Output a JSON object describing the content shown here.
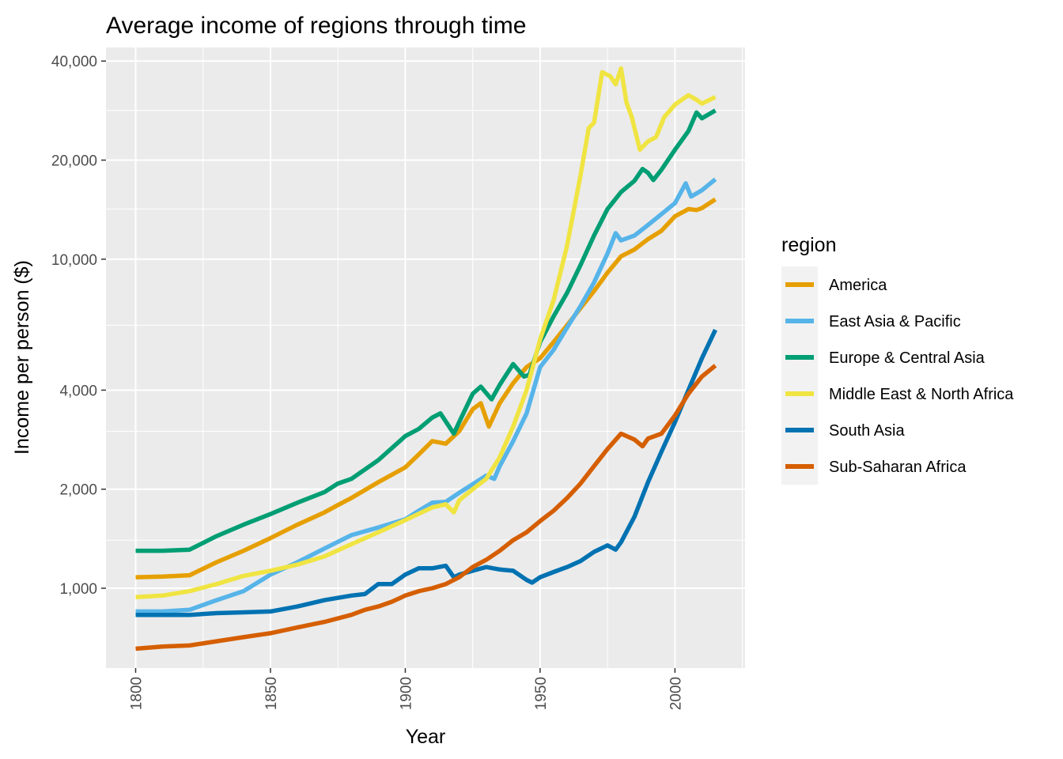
{
  "chart_data": {
    "type": "line",
    "title": "Average income of regions through time",
    "xlabel": "Year",
    "ylabel": "Income per person ($)",
    "xlim": [
      1789,
      2026
    ],
    "ylim": [
      572,
      44000
    ],
    "y_scale": "log",
    "x_ticks": [
      1800,
      1850,
      1900,
      1950,
      2000
    ],
    "x_tick_labels": [
      "1800",
      "1850",
      "1900",
      "1950",
      "2000"
    ],
    "x_minor_ticks": [
      1825,
      1875,
      1925,
      1975,
      2025
    ],
    "y_ticks": [
      1000,
      2000,
      4000,
      10000,
      20000,
      40000
    ],
    "y_tick_labels": [
      "1,000",
      "2,000",
      "4,000",
      "10,000",
      "20,000",
      "40,000"
    ],
    "y_minor_ticks": [
      1400,
      3000,
      6300,
      14200,
      28300
    ],
    "grid": true,
    "legend": {
      "title": "region",
      "position": "right"
    },
    "series": [
      {
        "name": "America",
        "color": "#E69F00",
        "points": [
          [
            1800,
            1080
          ],
          [
            1810,
            1085
          ],
          [
            1820,
            1095
          ],
          [
            1830,
            1200
          ],
          [
            1840,
            1300
          ],
          [
            1850,
            1420
          ],
          [
            1860,
            1560
          ],
          [
            1870,
            1700
          ],
          [
            1875,
            1790
          ],
          [
            1880,
            1880
          ],
          [
            1890,
            2100
          ],
          [
            1900,
            2330
          ],
          [
            1905,
            2550
          ],
          [
            1910,
            2800
          ],
          [
            1915,
            2750
          ],
          [
            1920,
            3000
          ],
          [
            1925,
            3500
          ],
          [
            1928,
            3650
          ],
          [
            1931,
            3100
          ],
          [
            1935,
            3650
          ],
          [
            1940,
            4200
          ],
          [
            1945,
            4700
          ],
          [
            1950,
            5000
          ],
          [
            1955,
            5600
          ],
          [
            1960,
            6300
          ],
          [
            1965,
            7100
          ],
          [
            1970,
            8000
          ],
          [
            1975,
            9100
          ],
          [
            1980,
            10200
          ],
          [
            1985,
            10700
          ],
          [
            1990,
            11500
          ],
          [
            1995,
            12200
          ],
          [
            2000,
            13500
          ],
          [
            2005,
            14200
          ],
          [
            2008,
            14100
          ],
          [
            2010,
            14300
          ],
          [
            2015,
            15200
          ]
        ]
      },
      {
        "name": "East Asia & Pacific",
        "color": "#56B4E9",
        "points": [
          [
            1800,
            850
          ],
          [
            1810,
            850
          ],
          [
            1820,
            860
          ],
          [
            1830,
            920
          ],
          [
            1840,
            980
          ],
          [
            1850,
            1100
          ],
          [
            1860,
            1200
          ],
          [
            1870,
            1320
          ],
          [
            1880,
            1450
          ],
          [
            1890,
            1530
          ],
          [
            1900,
            1620
          ],
          [
            1905,
            1720
          ],
          [
            1910,
            1820
          ],
          [
            1915,
            1830
          ],
          [
            1920,
            1950
          ],
          [
            1925,
            2070
          ],
          [
            1930,
            2200
          ],
          [
            1933,
            2150
          ],
          [
            1935,
            2350
          ],
          [
            1940,
            2800
          ],
          [
            1945,
            3400
          ],
          [
            1950,
            4700
          ],
          [
            1955,
            5300
          ],
          [
            1960,
            6200
          ],
          [
            1965,
            7200
          ],
          [
            1970,
            8500
          ],
          [
            1975,
            10400
          ],
          [
            1978,
            12000
          ],
          [
            1980,
            11400
          ],
          [
            1985,
            11800
          ],
          [
            1990,
            12700
          ],
          [
            1995,
            13700
          ],
          [
            2000,
            14800
          ],
          [
            2004,
            17000
          ],
          [
            2006,
            15500
          ],
          [
            2010,
            16200
          ],
          [
            2015,
            17500
          ]
        ]
      },
      {
        "name": "Europe & Central Asia",
        "color": "#009E73",
        "points": [
          [
            1800,
            1300
          ],
          [
            1810,
            1300
          ],
          [
            1820,
            1310
          ],
          [
            1830,
            1440
          ],
          [
            1840,
            1560
          ],
          [
            1850,
            1680
          ],
          [
            1860,
            1820
          ],
          [
            1870,
            1960
          ],
          [
            1875,
            2080
          ],
          [
            1880,
            2150
          ],
          [
            1890,
            2450
          ],
          [
            1900,
            2900
          ],
          [
            1905,
            3050
          ],
          [
            1910,
            3300
          ],
          [
            1913,
            3400
          ],
          [
            1918,
            2950
          ],
          [
            1920,
            3200
          ],
          [
            1925,
            3900
          ],
          [
            1928,
            4100
          ],
          [
            1932,
            3750
          ],
          [
            1935,
            4150
          ],
          [
            1940,
            4800
          ],
          [
            1944,
            4400
          ],
          [
            1946,
            4450
          ],
          [
            1950,
            5600
          ],
          [
            1955,
            6700
          ],
          [
            1960,
            7900
          ],
          [
            1965,
            9600
          ],
          [
            1970,
            11800
          ],
          [
            1975,
            14200
          ],
          [
            1980,
            16000
          ],
          [
            1985,
            17300
          ],
          [
            1988,
            18800
          ],
          [
            1990,
            18300
          ],
          [
            1992,
            17400
          ],
          [
            1995,
            18700
          ],
          [
            2000,
            21500
          ],
          [
            2005,
            24500
          ],
          [
            2008,
            27900
          ],
          [
            2010,
            26800
          ],
          [
            2015,
            28300
          ]
        ]
      },
      {
        "name": "Middle East & North Africa",
        "color": "#F0E442",
        "points": [
          [
            1800,
            940
          ],
          [
            1810,
            950
          ],
          [
            1820,
            980
          ],
          [
            1830,
            1030
          ],
          [
            1840,
            1090
          ],
          [
            1850,
            1130
          ],
          [
            1860,
            1180
          ],
          [
            1870,
            1250
          ],
          [
            1880,
            1360
          ],
          [
            1890,
            1480
          ],
          [
            1900,
            1610
          ],
          [
            1910,
            1760
          ],
          [
            1915,
            1800
          ],
          [
            1918,
            1700
          ],
          [
            1920,
            1850
          ],
          [
            1925,
            2000
          ],
          [
            1930,
            2150
          ],
          [
            1935,
            2500
          ],
          [
            1940,
            3100
          ],
          [
            1945,
            4000
          ],
          [
            1950,
            5700
          ],
          [
            1955,
            7500
          ],
          [
            1960,
            11000
          ],
          [
            1965,
            18000
          ],
          [
            1968,
            25000
          ],
          [
            1970,
            26000
          ],
          [
            1973,
            37000
          ],
          [
            1976,
            36000
          ],
          [
            1978,
            34000
          ],
          [
            1980,
            38000
          ],
          [
            1982,
            30000
          ],
          [
            1984,
            27000
          ],
          [
            1987,
            21500
          ],
          [
            1990,
            22800
          ],
          [
            1993,
            23500
          ],
          [
            1996,
            27000
          ],
          [
            2000,
            29500
          ],
          [
            2005,
            31500
          ],
          [
            2008,
            30500
          ],
          [
            2010,
            29700
          ],
          [
            2015,
            31100
          ]
        ]
      },
      {
        "name": "South Asia",
        "color": "#0072B2",
        "points": [
          [
            1800,
            830
          ],
          [
            1810,
            830
          ],
          [
            1820,
            830
          ],
          [
            1830,
            840
          ],
          [
            1840,
            845
          ],
          [
            1850,
            850
          ],
          [
            1860,
            880
          ],
          [
            1870,
            920
          ],
          [
            1880,
            950
          ],
          [
            1885,
            960
          ],
          [
            1890,
            1030
          ],
          [
            1895,
            1030
          ],
          [
            1900,
            1100
          ],
          [
            1905,
            1150
          ],
          [
            1910,
            1150
          ],
          [
            1915,
            1170
          ],
          [
            1918,
            1080
          ],
          [
            1920,
            1100
          ],
          [
            1925,
            1130
          ],
          [
            1930,
            1160
          ],
          [
            1935,
            1140
          ],
          [
            1940,
            1130
          ],
          [
            1945,
            1060
          ],
          [
            1947,
            1040
          ],
          [
            1950,
            1080
          ],
          [
            1955,
            1120
          ],
          [
            1960,
            1160
          ],
          [
            1965,
            1210
          ],
          [
            1970,
            1290
          ],
          [
            1975,
            1350
          ],
          [
            1978,
            1310
          ],
          [
            1980,
            1380
          ],
          [
            1985,
            1650
          ],
          [
            1990,
            2100
          ],
          [
            1995,
            2600
          ],
          [
            2000,
            3200
          ],
          [
            2005,
            4000
          ],
          [
            2010,
            5000
          ],
          [
            2015,
            6100
          ]
        ]
      },
      {
        "name": "Sub-Saharan Africa",
        "color": "#D55E00",
        "points": [
          [
            1800,
            655
          ],
          [
            1810,
            665
          ],
          [
            1820,
            670
          ],
          [
            1830,
            690
          ],
          [
            1840,
            710
          ],
          [
            1850,
            730
          ],
          [
            1860,
            760
          ],
          [
            1870,
            790
          ],
          [
            1880,
            830
          ],
          [
            1885,
            860
          ],
          [
            1890,
            880
          ],
          [
            1895,
            910
          ],
          [
            1900,
            950
          ],
          [
            1905,
            980
          ],
          [
            1910,
            1000
          ],
          [
            1915,
            1030
          ],
          [
            1920,
            1080
          ],
          [
            1925,
            1160
          ],
          [
            1930,
            1220
          ],
          [
            1935,
            1300
          ],
          [
            1940,
            1400
          ],
          [
            1945,
            1480
          ],
          [
            1950,
            1600
          ],
          [
            1955,
            1720
          ],
          [
            1960,
            1880
          ],
          [
            1965,
            2080
          ],
          [
            1970,
            2350
          ],
          [
            1975,
            2650
          ],
          [
            1980,
            2950
          ],
          [
            1985,
            2830
          ],
          [
            1988,
            2700
          ],
          [
            1990,
            2850
          ],
          [
            1995,
            2950
          ],
          [
            2000,
            3350
          ],
          [
            2005,
            3900
          ],
          [
            2010,
            4400
          ],
          [
            2015,
            4750
          ]
        ]
      }
    ]
  }
}
